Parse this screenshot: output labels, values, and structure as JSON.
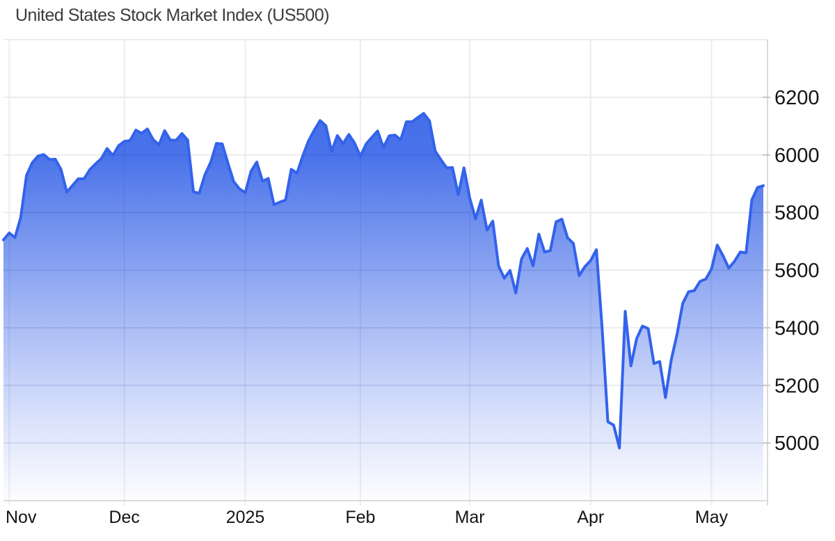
{
  "chart_data": {
    "type": "area",
    "title": "United States Stock Market Index (US500)",
    "legend": "none",
    "grid": "on",
    "x_tick_labels": [
      "Nov",
      "Dec",
      "2025",
      "Feb",
      "Mar",
      "Apr",
      "May"
    ],
    "x_tick_indices": [
      1,
      21,
      42,
      62,
      81,
      102,
      123
    ],
    "y_tick_labels": [
      "6200",
      "6000",
      "5800",
      "5600",
      "5400",
      "5200",
      "5000"
    ],
    "y_tick_values": [
      6200,
      6000,
      5800,
      5600,
      5400,
      5200,
      5000
    ],
    "grid_y_values": [
      6400,
      6200,
      6000,
      5800,
      5600,
      5400,
      5200,
      5000,
      4800
    ],
    "ylim": [
      4800,
      6400
    ],
    "series": [
      {
        "name": "US500",
        "values": [
          5705,
          5729,
          5713,
          5783,
          5929,
          5973,
          5996,
          6001,
          5984,
          5985,
          5949,
          5871,
          5894,
          5917,
          5917,
          5949,
          5969,
          5987,
          6022,
          5998,
          6032,
          6047,
          6050,
          6086,
          6075,
          6090,
          6053,
          6035,
          6084,
          6051,
          6051,
          6074,
          6051,
          5872,
          5867,
          5931,
          5974,
          6040,
          6038,
          5971,
          5907,
          5882,
          5869,
          5943,
          5975,
          5909,
          5918,
          5827,
          5836,
          5843,
          5950,
          5937,
          5997,
          6049,
          6086,
          6119,
          6101,
          6012,
          6067,
          6039,
          6071,
          6041,
          5995,
          6038,
          6061,
          6083,
          6026,
          6066,
          6069,
          6052,
          6115,
          6115,
          6130,
          6144,
          6118,
          6013,
          5983,
          5955,
          5956,
          5862,
          5955,
          5850,
          5778,
          5843,
          5739,
          5770,
          5615,
          5572,
          5599,
          5521,
          5639,
          5675,
          5615,
          5725,
          5663,
          5668,
          5768,
          5777,
          5712,
          5693,
          5581,
          5612,
          5633,
          5671,
          5396,
          5074,
          5062,
          4983,
          5457,
          5268,
          5363,
          5406,
          5397,
          5276,
          5283,
          5158,
          5288,
          5376,
          5485,
          5525,
          5529,
          5561,
          5569,
          5604,
          5687,
          5650,
          5607,
          5631,
          5663,
          5660,
          5844,
          5887,
          5893
        ]
      }
    ],
    "colors": {
      "line": "#3363EB",
      "fill_top": "#3A66E8",
      "fill_mid": "#A5B8F4",
      "fill_bottom": "#FDFDFF",
      "gridline": "#ECECEC",
      "axis_line": "#DBDBDB",
      "tick": "#C6C6C6",
      "label": "#141414",
      "title": "#3C3C3C"
    }
  }
}
